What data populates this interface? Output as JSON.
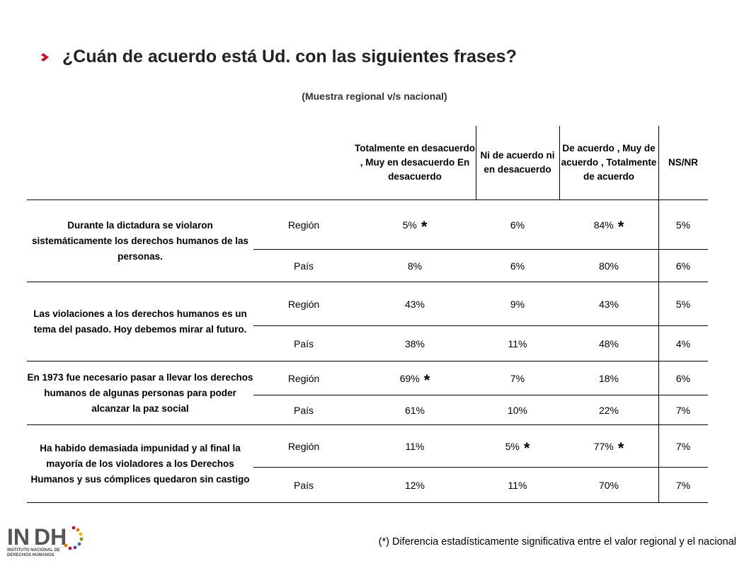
{
  "title": "¿Cuán de acuerdo está Ud. con las siguientes frases?",
  "subtitle": "(Muestra regional v/s nacional)",
  "columns": [
    "Totalmente en desacuerdo , Muy en desacuerdo  En desacuerdo",
    "Ni de acuerdo ni en desacuerdo",
    "De acuerdo , Muy de acuerdo , Totalmente de acuerdo",
    "NS/NR"
  ],
  "statements": [
    {
      "label": "Durante la dictadura se violaron sistemáticamente los derechos humanos de las personas.",
      "rows": [
        {
          "group": "Región",
          "values": [
            "5%",
            "6%",
            "84%",
            "5%"
          ],
          "sig": [
            true,
            false,
            true,
            false
          ]
        },
        {
          "group": "País",
          "values": [
            "8%",
            "6%",
            "80%",
            "6%"
          ],
          "sig": [
            false,
            false,
            false,
            false
          ]
        }
      ]
    },
    {
      "label": "Las violaciones a los derechos humanos es un tema del pasado. Hoy debemos mirar al futuro.",
      "rows": [
        {
          "group": "Región",
          "values": [
            "43%",
            "9%",
            "43%",
            "5%"
          ],
          "sig": [
            false,
            false,
            false,
            false
          ]
        },
        {
          "group": "País",
          "values": [
            "38%",
            "11%",
            "48%",
            "4%"
          ],
          "sig": [
            false,
            false,
            false,
            false
          ]
        }
      ]
    },
    {
      "label": "En 1973 fue necesario pasar a llevar los derechos humanos de algunas personas para poder alcanzar la paz social",
      "rows": [
        {
          "group": "Región",
          "values": [
            "69%",
            "7%",
            "18%",
            "6%"
          ],
          "sig": [
            true,
            false,
            false,
            false
          ]
        },
        {
          "group": "País",
          "values": [
            "61%",
            "10%",
            "22%",
            "7%"
          ],
          "sig": [
            false,
            false,
            false,
            false
          ]
        }
      ]
    },
    {
      "label": "Ha habido demasiada impunidad y al final la mayoría de los violadores a los Derechos Humanos y sus cómplices quedaron sin castigo",
      "rows": [
        {
          "group": "Región",
          "values": [
            "11%",
            "5%",
            "77%",
            "7%"
          ],
          "sig": [
            false,
            true,
            true,
            false
          ]
        },
        {
          "group": "País",
          "values": [
            "12%",
            "11%",
            "70%",
            "7%"
          ],
          "sig": [
            false,
            false,
            false,
            false
          ]
        }
      ]
    }
  ],
  "asterisk": "*",
  "footnote": "(*) Diferencia estadísticamente significativa entre el valor regional y el nacional",
  "logo": {
    "name": "INDH",
    "subtitle": "INSTITUTO NACIONAL DE DERECHOS HUMANOS"
  }
}
